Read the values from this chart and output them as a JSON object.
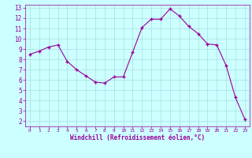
{
  "hours": [
    0,
    1,
    2,
    3,
    4,
    5,
    6,
    7,
    8,
    9,
    10,
    11,
    12,
    13,
    14,
    15,
    16,
    17,
    18,
    19,
    20,
    21,
    22,
    23
  ],
  "values": [
    8.5,
    8.8,
    9.2,
    9.4,
    7.8,
    7.0,
    6.4,
    5.8,
    5.7,
    6.3,
    6.3,
    8.7,
    11.1,
    11.9,
    11.9,
    12.9,
    12.2,
    11.2,
    10.5,
    9.5,
    9.4,
    7.4,
    4.3,
    2.2
  ],
  "line_color": "#990099",
  "marker_color": "#990099",
  "bg_color": "#ccffff",
  "grid_color": "#aadddd",
  "xlabel": "Windchill (Refroidissement éolien,°C)",
  "xlabel_color": "#990099",
  "tick_color": "#990099",
  "ylim": [
    1.5,
    13.3
  ],
  "xlim": [
    -0.5,
    23.5
  ],
  "yticks": [
    2,
    3,
    4,
    5,
    6,
    7,
    8,
    9,
    10,
    11,
    12,
    13
  ],
  "xticks": [
    0,
    1,
    2,
    3,
    4,
    5,
    6,
    7,
    8,
    9,
    10,
    11,
    12,
    13,
    14,
    15,
    16,
    17,
    18,
    19,
    20,
    21,
    22,
    23
  ]
}
